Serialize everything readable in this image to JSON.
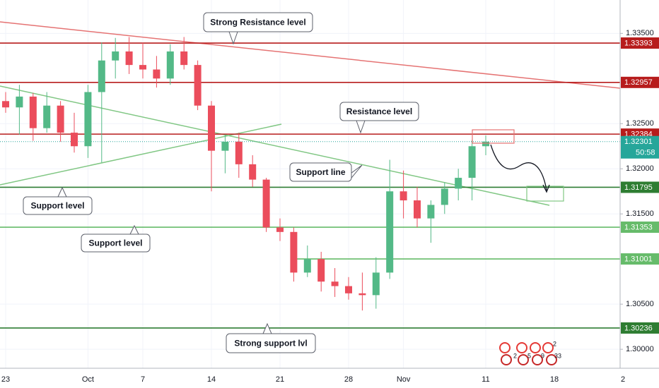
{
  "chart_data": {
    "type": "candlestick",
    "categories": [
      "23",
      null,
      null,
      null,
      null,
      null,
      "Oct",
      null,
      null,
      null,
      "7",
      null,
      null,
      null,
      null,
      "14",
      null,
      null,
      null,
      null,
      "21",
      null,
      null,
      null,
      null,
      "28",
      null,
      null,
      null,
      "Nov",
      null,
      null,
      null,
      null,
      null,
      "11",
      null,
      null,
      null,
      null,
      "18",
      null,
      null,
      null,
      null,
      "2"
    ],
    "open": [
      1.3275,
      1.3268,
      1.328,
      1.3245,
      1.327,
      1.324,
      1.3225,
      1.3285,
      1.332,
      1.333,
      1.3315,
      1.331,
      1.33,
      1.333,
      1.3315,
      1.327,
      1.322,
      1.323,
      1.3205,
      1.3188,
      1.3135,
      1.313,
      1.3085,
      1.31,
      1.3075,
      1.307,
      1.3062,
      1.306,
      1.3085,
      1.3175,
      1.3165,
      1.3145,
      1.316,
      1.3178,
      1.319,
      1.3225,
      null,
      null,
      null,
      null,
      null,
      null,
      null,
      null,
      null,
      null
    ],
    "high": [
      1.3285,
      1.3293,
      1.3284,
      1.3285,
      1.3275,
      1.3262,
      1.3293,
      1.334,
      1.3345,
      1.3346,
      1.334,
      1.3325,
      1.3338,
      1.3346,
      1.332,
      1.3275,
      1.3238,
      1.324,
      1.3215,
      1.319,
      1.3145,
      1.3135,
      1.3115,
      1.3108,
      1.309,
      1.308,
      1.3085,
      1.3102,
      1.321,
      1.3198,
      1.318,
      1.3165,
      1.3185,
      1.32,
      1.3232,
      1.3237,
      null,
      null,
      null,
      null,
      null,
      null,
      null,
      null,
      null,
      null
    ],
    "low": [
      1.3262,
      1.3238,
      1.3231,
      1.324,
      1.323,
      1.3218,
      1.3212,
      1.3207,
      1.33,
      1.3305,
      1.33,
      1.329,
      1.3293,
      1.331,
      1.3265,
      1.3175,
      1.3195,
      1.319,
      1.318,
      1.313,
      1.312,
      1.3075,
      1.308,
      1.3064,
      1.3058,
      1.3055,
      1.3043,
      1.3045,
      1.3078,
      1.3145,
      1.3135,
      1.3118,
      1.315,
      1.3165,
      1.3165,
      1.3215,
      null,
      null,
      null,
      null,
      null,
      null,
      null,
      null,
      null,
      null
    ],
    "close": [
      1.3268,
      1.328,
      1.3245,
      1.327,
      1.324,
      1.3225,
      1.3285,
      1.332,
      1.333,
      1.3315,
      1.331,
      1.33,
      1.333,
      1.3315,
      1.327,
      1.322,
      1.323,
      1.3205,
      1.3188,
      1.3135,
      1.313,
      1.3085,
      1.31,
      1.3075,
      1.307,
      1.3062,
      1.306,
      1.3085,
      1.3175,
      1.3165,
      1.3145,
      1.316,
      1.3178,
      1.319,
      1.3225,
      1.323,
      null,
      null,
      null,
      null,
      null,
      null,
      null,
      null,
      null,
      null
    ],
    "up_color": "#53b987",
    "down_color": "#eb4d5c",
    "ylim": [
      1.2979,
      1.3387
    ],
    "yticks": [
      {
        "value": 1.335,
        "label": "1.33500"
      },
      {
        "value": 1.325,
        "label": "1.32500"
      },
      {
        "value": 1.32,
        "label": "1.32000"
      },
      {
        "value": 1.315,
        "label": "1.31500"
      },
      {
        "value": 1.305,
        "label": "1.30500"
      },
      {
        "value": 1.3,
        "label": "1.30000"
      }
    ],
    "grid": true,
    "levels": [
      {
        "value": 1.33393,
        "color": "#b71c1c"
      },
      {
        "value": 1.32957,
        "color": "#b71c1c"
      },
      {
        "value": 1.32384,
        "color": "#b71c1c"
      },
      {
        "value": 1.31795,
        "color": "#2e7d32"
      },
      {
        "value": 1.31353,
        "color": "#66bb6a"
      },
      {
        "value": 1.31001,
        "color": "#66bb6a"
      },
      {
        "value": 1.30236,
        "color": "#2e7d32"
      }
    ],
    "current_price": {
      "value": 1.32301,
      "countdown": "50:58",
      "color": "#26a69a"
    },
    "annotations": [
      "Strong Resistance level",
      "Resistance level",
      "Support line",
      "Support level",
      "Support level",
      "Strong support lvl"
    ],
    "events": [
      2,
      5,
      9,
      33,
      2
    ]
  }
}
